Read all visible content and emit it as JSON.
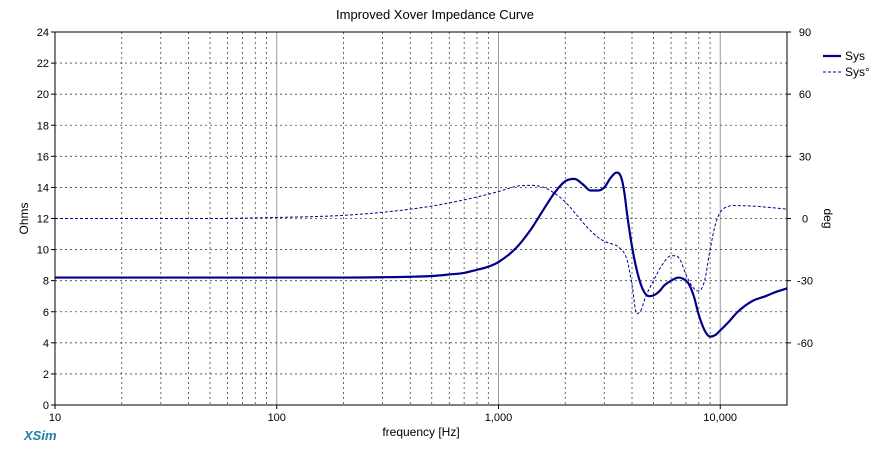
{
  "chart_data": {
    "type": "line",
    "title": "Improved Xover Impedance Curve",
    "xlabel": "frequency [Hz]",
    "ylabel": "Ohms",
    "y2label": "deg",
    "xscale": "log",
    "xlim": [
      10,
      20000
    ],
    "ylim": [
      0,
      24
    ],
    "y2lim": [
      -90,
      90
    ],
    "x_ticks": [
      10,
      100,
      1000,
      10000
    ],
    "x_tick_labels": [
      "10",
      "100",
      "1,000",
      "10,000"
    ],
    "y_ticks": [
      0,
      2,
      4,
      6,
      8,
      10,
      12,
      14,
      16,
      18,
      20,
      22,
      24
    ],
    "y_tick_labels": [
      "0",
      "2",
      "4",
      "6",
      "8",
      "10",
      "12",
      "14",
      "16",
      "18",
      "20",
      "22",
      "24"
    ],
    "y2_ticks": [
      90,
      60,
      30,
      0,
      -30,
      -60
    ],
    "y2_tick_labels": [
      "90",
      "60",
      "30",
      "0",
      "-30",
      "-60"
    ],
    "grid": true,
    "legend_position": "right",
    "series": [
      {
        "name": "Sys",
        "axis": "left",
        "color": "#00008B",
        "style": "solid",
        "x": [
          10,
          50,
          100,
          200,
          300,
          400,
          500,
          600,
          700,
          800,
          900,
          1000,
          1200,
          1400,
          1600,
          1800,
          2000,
          2200,
          2400,
          2600,
          2800,
          3000,
          3200,
          3400,
          3500,
          3600,
          3700,
          3800,
          4000,
          4200,
          4400,
          4600,
          4800,
          5000,
          5300,
          5600,
          6000,
          6500,
          7000,
          7200,
          7600,
          8000,
          8500,
          9000,
          9500,
          10000,
          11000,
          12000,
          14000,
          16000,
          18000,
          20000
        ],
        "values": [
          8.2,
          8.2,
          8.2,
          8.2,
          8.22,
          8.25,
          8.3,
          8.4,
          8.5,
          8.7,
          8.9,
          9.2,
          10.1,
          11.3,
          12.6,
          13.7,
          14.4,
          14.55,
          14.2,
          13.8,
          13.8,
          14.0,
          14.6,
          14.95,
          14.9,
          14.5,
          13.6,
          12.3,
          10.2,
          8.7,
          7.7,
          7.15,
          7.0,
          7.05,
          7.3,
          7.7,
          8.0,
          8.2,
          8.0,
          7.8,
          7.0,
          5.8,
          4.8,
          4.4,
          4.5,
          4.8,
          5.4,
          6.0,
          6.7,
          7.0,
          7.3,
          7.5
        ]
      },
      {
        "name": "Sys°",
        "axis": "right",
        "color": "#00008B",
        "style": "dashed",
        "x": [
          10,
          50,
          100,
          200,
          300,
          400,
          500,
          700,
          1000,
          1200,
          1400,
          1600,
          1800,
          2000,
          2200,
          2500,
          2800,
          3000,
          3200,
          3500,
          3800,
          4000,
          4200,
          4400,
          4600,
          5000,
          5500,
          6000,
          6300,
          6600,
          7000,
          7500,
          8000,
          8500,
          9000,
          9500,
          10000,
          11000,
          12000,
          14000,
          16000,
          18000,
          20000
        ],
        "values": [
          0,
          0,
          0.5,
          1.5,
          3,
          4.5,
          6,
          9,
          13,
          15.5,
          16,
          15,
          12,
          8,
          3,
          -4,
          -9,
          -11,
          -12,
          -14,
          -20,
          -32,
          -46,
          -44,
          -38,
          -30,
          -22,
          -18,
          -18,
          -20,
          -27,
          -33,
          -35,
          -30,
          -15,
          -3,
          3,
          6,
          6.2,
          6,
          5.5,
          5,
          4.5
        ]
      }
    ]
  },
  "branding": {
    "logo_text": "XSim",
    "logo_color": "#1F7FA8"
  },
  "legend": {
    "items": [
      {
        "label": "Sys",
        "style": "solid"
      },
      {
        "label": "Sys°",
        "style": "dashed"
      }
    ]
  }
}
